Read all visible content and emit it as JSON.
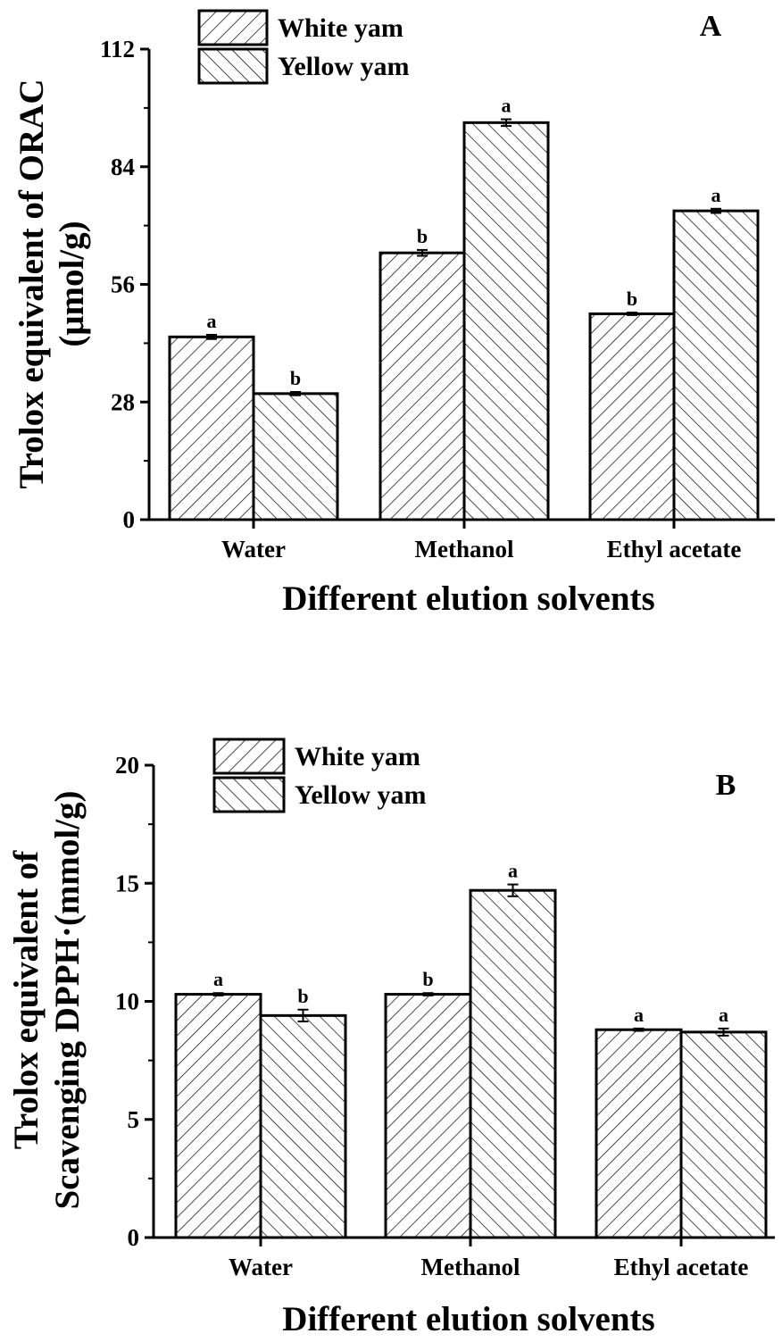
{
  "chart_data": [
    {
      "type": "bar",
      "panel": "A",
      "categories": [
        "Water",
        "Methanol",
        "Ethyl acetate"
      ],
      "series": [
        {
          "name": "White yam",
          "values": [
            43.5,
            63.5,
            49.0
          ],
          "errors": [
            0.5,
            0.7,
            0.3
          ],
          "significance": [
            "a",
            "b",
            "b"
          ],
          "pattern": "forward-diagonal"
        },
        {
          "name": "Yellow yam",
          "values": [
            30.0,
            94.5,
            73.5
          ],
          "errors": [
            0.4,
            0.8,
            0.5
          ],
          "significance": [
            "b",
            "a",
            "a"
          ],
          "pattern": "back-diagonal"
        }
      ],
      "xlabel": "Different elution solvents",
      "ylabel": [
        "Trolox equivalent of ORAC",
        "(μmol/g)"
      ],
      "ylim": [
        0,
        112
      ],
      "yticks": [
        0,
        28,
        56,
        84,
        112
      ],
      "legend_position": "top-left",
      "grid": false
    },
    {
      "type": "bar",
      "panel": "B",
      "categories": [
        "Water",
        "Methanol",
        "Ethyl acetate"
      ],
      "series": [
        {
          "name": "White yam",
          "values": [
            10.3,
            10.3,
            8.8
          ],
          "errors": [
            0.05,
            0.05,
            0.05
          ],
          "significance": [
            "a",
            "b",
            "a"
          ],
          "pattern": "forward-diagonal"
        },
        {
          "name": "Yellow yam",
          "values": [
            9.4,
            14.7,
            8.7
          ],
          "errors": [
            0.25,
            0.25,
            0.15
          ],
          "significance": [
            "b",
            "a",
            "a"
          ],
          "pattern": "back-diagonal"
        }
      ],
      "xlabel": "Different elution solvents",
      "ylabel": [
        "Trolox equivalent of",
        "Scavenging DPPH·(mmol/g)"
      ],
      "ylim": [
        0,
        20
      ],
      "yticks": [
        0,
        5,
        10,
        15,
        20
      ],
      "legend_position": "top-left",
      "grid": false
    }
  ]
}
